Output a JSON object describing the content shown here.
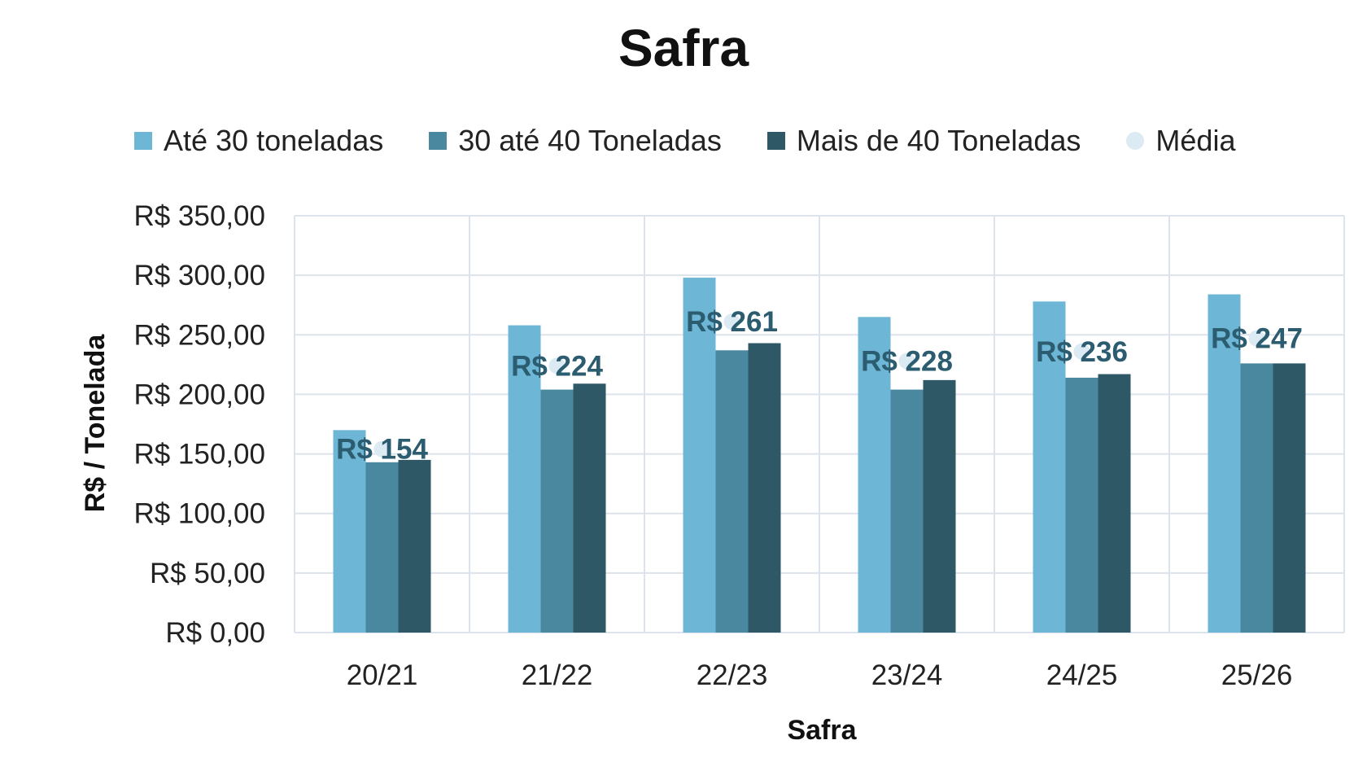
{
  "chart_data": {
    "type": "bar",
    "title": "Safra",
    "xlabel": "Safra",
    "ylabel": "R$ / Tonelada",
    "categories": [
      "20/21",
      "21/22",
      "22/23",
      "23/24",
      "24/25",
      "25/26"
    ],
    "series": [
      {
        "name": "Até 30 toneladas",
        "color": "#6eb6d6",
        "values": [
          170,
          258,
          298,
          265,
          278,
          284
        ]
      },
      {
        "name": "30 até 40 Toneladas",
        "color": "#4a889f",
        "values": [
          143,
          204,
          237,
          204,
          214,
          226
        ]
      },
      {
        "name": "Mais de 40 Toneladas",
        "color": "#2e5866",
        "values": [
          145,
          209,
          243,
          212,
          217,
          226
        ]
      }
    ],
    "average": {
      "name": "Média",
      "color": "#dbeaf3",
      "label_color": "#2c5c70",
      "values": [
        154,
        224,
        261,
        228,
        236,
        247
      ],
      "labels": [
        "R$ 154",
        "R$ 224",
        "R$ 261",
        "R$ 228",
        "R$ 236",
        "R$ 247"
      ]
    },
    "y_ticks": [
      0,
      50,
      100,
      150,
      200,
      250,
      300,
      350
    ],
    "y_tick_labels": [
      "R$ 0,00",
      "R$ 50,00",
      "R$ 100,00",
      "R$ 150,00",
      "R$ 200,00",
      "R$ 250,00",
      "R$ 300,00",
      "R$ 350,00"
    ],
    "ylim": [
      0,
      350
    ],
    "grid": true,
    "legend_position": "top"
  }
}
